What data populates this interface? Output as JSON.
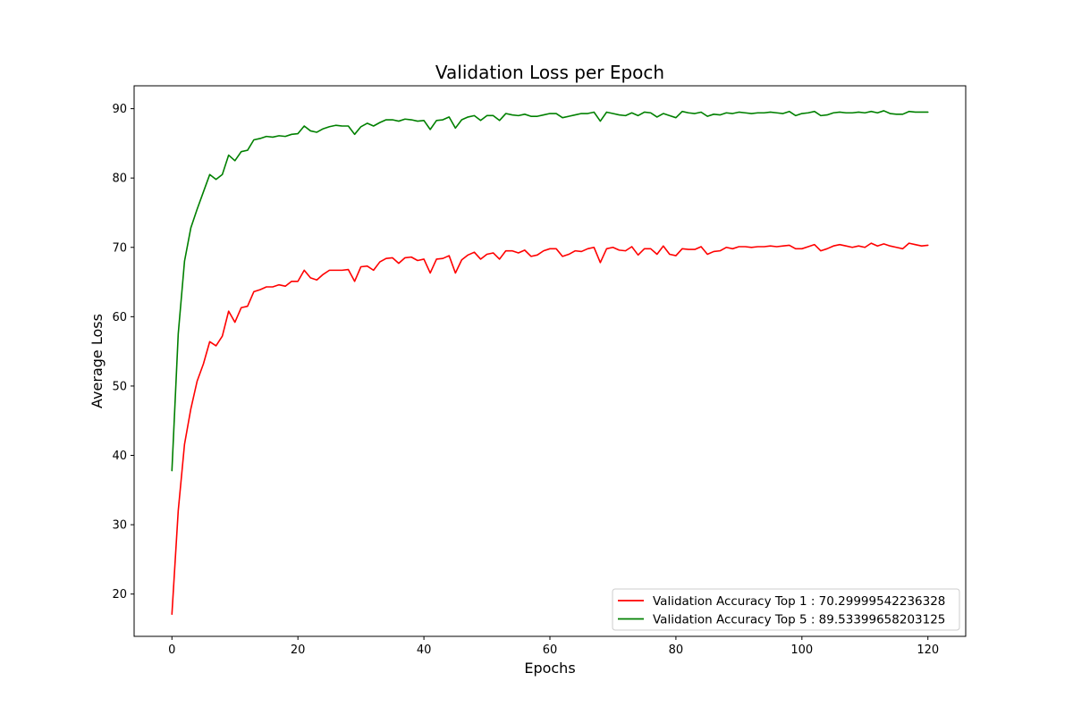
{
  "chart_data": {
    "type": "line",
    "title": "Validation Loss per Epoch",
    "xlabel": "Epochs",
    "ylabel": "Average Loss",
    "xlim": [
      -6,
      126
    ],
    "ylim": [
      13.9,
      93.3
    ],
    "xticks": [
      0,
      20,
      40,
      60,
      80,
      100,
      120
    ],
    "yticks": [
      20,
      30,
      40,
      50,
      60,
      70,
      80,
      90
    ],
    "grid": false,
    "legend_position": "lower-right",
    "x": [
      0,
      1,
      2,
      3,
      4,
      5,
      6,
      7,
      8,
      9,
      10,
      11,
      12,
      13,
      14,
      15,
      16,
      17,
      18,
      19,
      20,
      21,
      22,
      23,
      24,
      25,
      26,
      27,
      28,
      29,
      30,
      31,
      32,
      33,
      34,
      35,
      36,
      37,
      38,
      39,
      40,
      41,
      42,
      43,
      44,
      45,
      46,
      47,
      48,
      49,
      50,
      51,
      52,
      53,
      54,
      55,
      56,
      57,
      58,
      59,
      60,
      61,
      62,
      63,
      64,
      65,
      66,
      67,
      68,
      69,
      70,
      71,
      72,
      73,
      74,
      75,
      76,
      77,
      78,
      79,
      80,
      81,
      82,
      83,
      84,
      85,
      86,
      87,
      88,
      89,
      90,
      91,
      92,
      93,
      94,
      95,
      96,
      97,
      98,
      99,
      100,
      101,
      102,
      103,
      104,
      105,
      106,
      107,
      108,
      109,
      110,
      111,
      112,
      113,
      114,
      115,
      116,
      117,
      118,
      119,
      120
    ],
    "series": [
      {
        "name": "Validation Accuracy Top 1 : 70.29999542236328",
        "color": "#ff0000",
        "values": [
          17.1,
          32.0,
          41.6,
          46.7,
          50.7,
          53.2,
          56.4,
          55.8,
          57.2,
          60.8,
          59.2,
          61.3,
          61.5,
          63.6,
          63.9,
          64.3,
          64.3,
          64.6,
          64.4,
          65.1,
          65.1,
          66.7,
          65.6,
          65.3,
          66.1,
          66.7,
          66.7,
          66.7,
          66.8,
          65.1,
          67.2,
          67.3,
          66.7,
          67.9,
          68.4,
          68.5,
          67.7,
          68.5,
          68.6,
          68.1,
          68.3,
          66.3,
          68.3,
          68.4,
          68.8,
          66.3,
          68.2,
          68.9,
          69.3,
          68.3,
          69.0,
          69.2,
          68.3,
          69.5,
          69.5,
          69.2,
          69.6,
          68.7,
          68.9,
          69.5,
          69.8,
          69.8,
          68.7,
          69.0,
          69.5,
          69.4,
          69.8,
          70.0,
          67.8,
          69.8,
          70.0,
          69.6,
          69.5,
          70.1,
          68.9,
          69.8,
          69.8,
          69.0,
          70.2,
          69.0,
          68.8,
          69.8,
          69.7,
          69.7,
          70.1,
          69.0,
          69.4,
          69.5,
          70.0,
          69.8,
          70.1,
          70.1,
          70.0,
          70.1,
          70.1,
          70.2,
          70.1,
          70.2,
          70.3,
          69.8,
          69.8,
          70.1,
          70.4,
          69.5,
          69.8,
          70.2,
          70.4,
          70.2,
          70.0,
          70.2,
          70.0,
          70.6,
          70.2,
          70.5,
          70.2,
          70.0,
          69.8,
          70.6,
          70.4,
          70.2,
          70.3
        ]
      },
      {
        "name": "Validation Accuracy Top 5 : 89.53399658203125",
        "color": "#008000",
        "values": [
          37.8,
          57.5,
          68.0,
          72.8,
          75.5,
          78.0,
          80.5,
          79.8,
          80.5,
          83.3,
          82.5,
          83.8,
          84.0,
          85.5,
          85.7,
          86.0,
          85.9,
          86.1,
          86.0,
          86.3,
          86.4,
          87.5,
          86.8,
          86.6,
          87.1,
          87.4,
          87.6,
          87.5,
          87.5,
          86.3,
          87.4,
          87.9,
          87.5,
          88.0,
          88.4,
          88.4,
          88.2,
          88.5,
          88.4,
          88.2,
          88.3,
          87.0,
          88.3,
          88.4,
          88.8,
          87.2,
          88.4,
          88.8,
          89.0,
          88.3,
          89.0,
          89.0,
          88.3,
          89.3,
          89.1,
          89.0,
          89.2,
          88.9,
          88.9,
          89.1,
          89.3,
          89.3,
          88.7,
          88.9,
          89.1,
          89.3,
          89.3,
          89.5,
          88.2,
          89.5,
          89.3,
          89.1,
          89.0,
          89.4,
          89.0,
          89.5,
          89.4,
          88.8,
          89.3,
          89.0,
          88.7,
          89.6,
          89.4,
          89.3,
          89.5,
          88.9,
          89.2,
          89.1,
          89.4,
          89.3,
          89.5,
          89.4,
          89.3,
          89.4,
          89.4,
          89.5,
          89.4,
          89.3,
          89.6,
          89.0,
          89.3,
          89.4,
          89.6,
          89.0,
          89.1,
          89.4,
          89.5,
          89.4,
          89.4,
          89.5,
          89.4,
          89.6,
          89.4,
          89.7,
          89.3,
          89.2,
          89.2,
          89.6,
          89.5,
          89.5,
          89.5
        ]
      }
    ]
  }
}
